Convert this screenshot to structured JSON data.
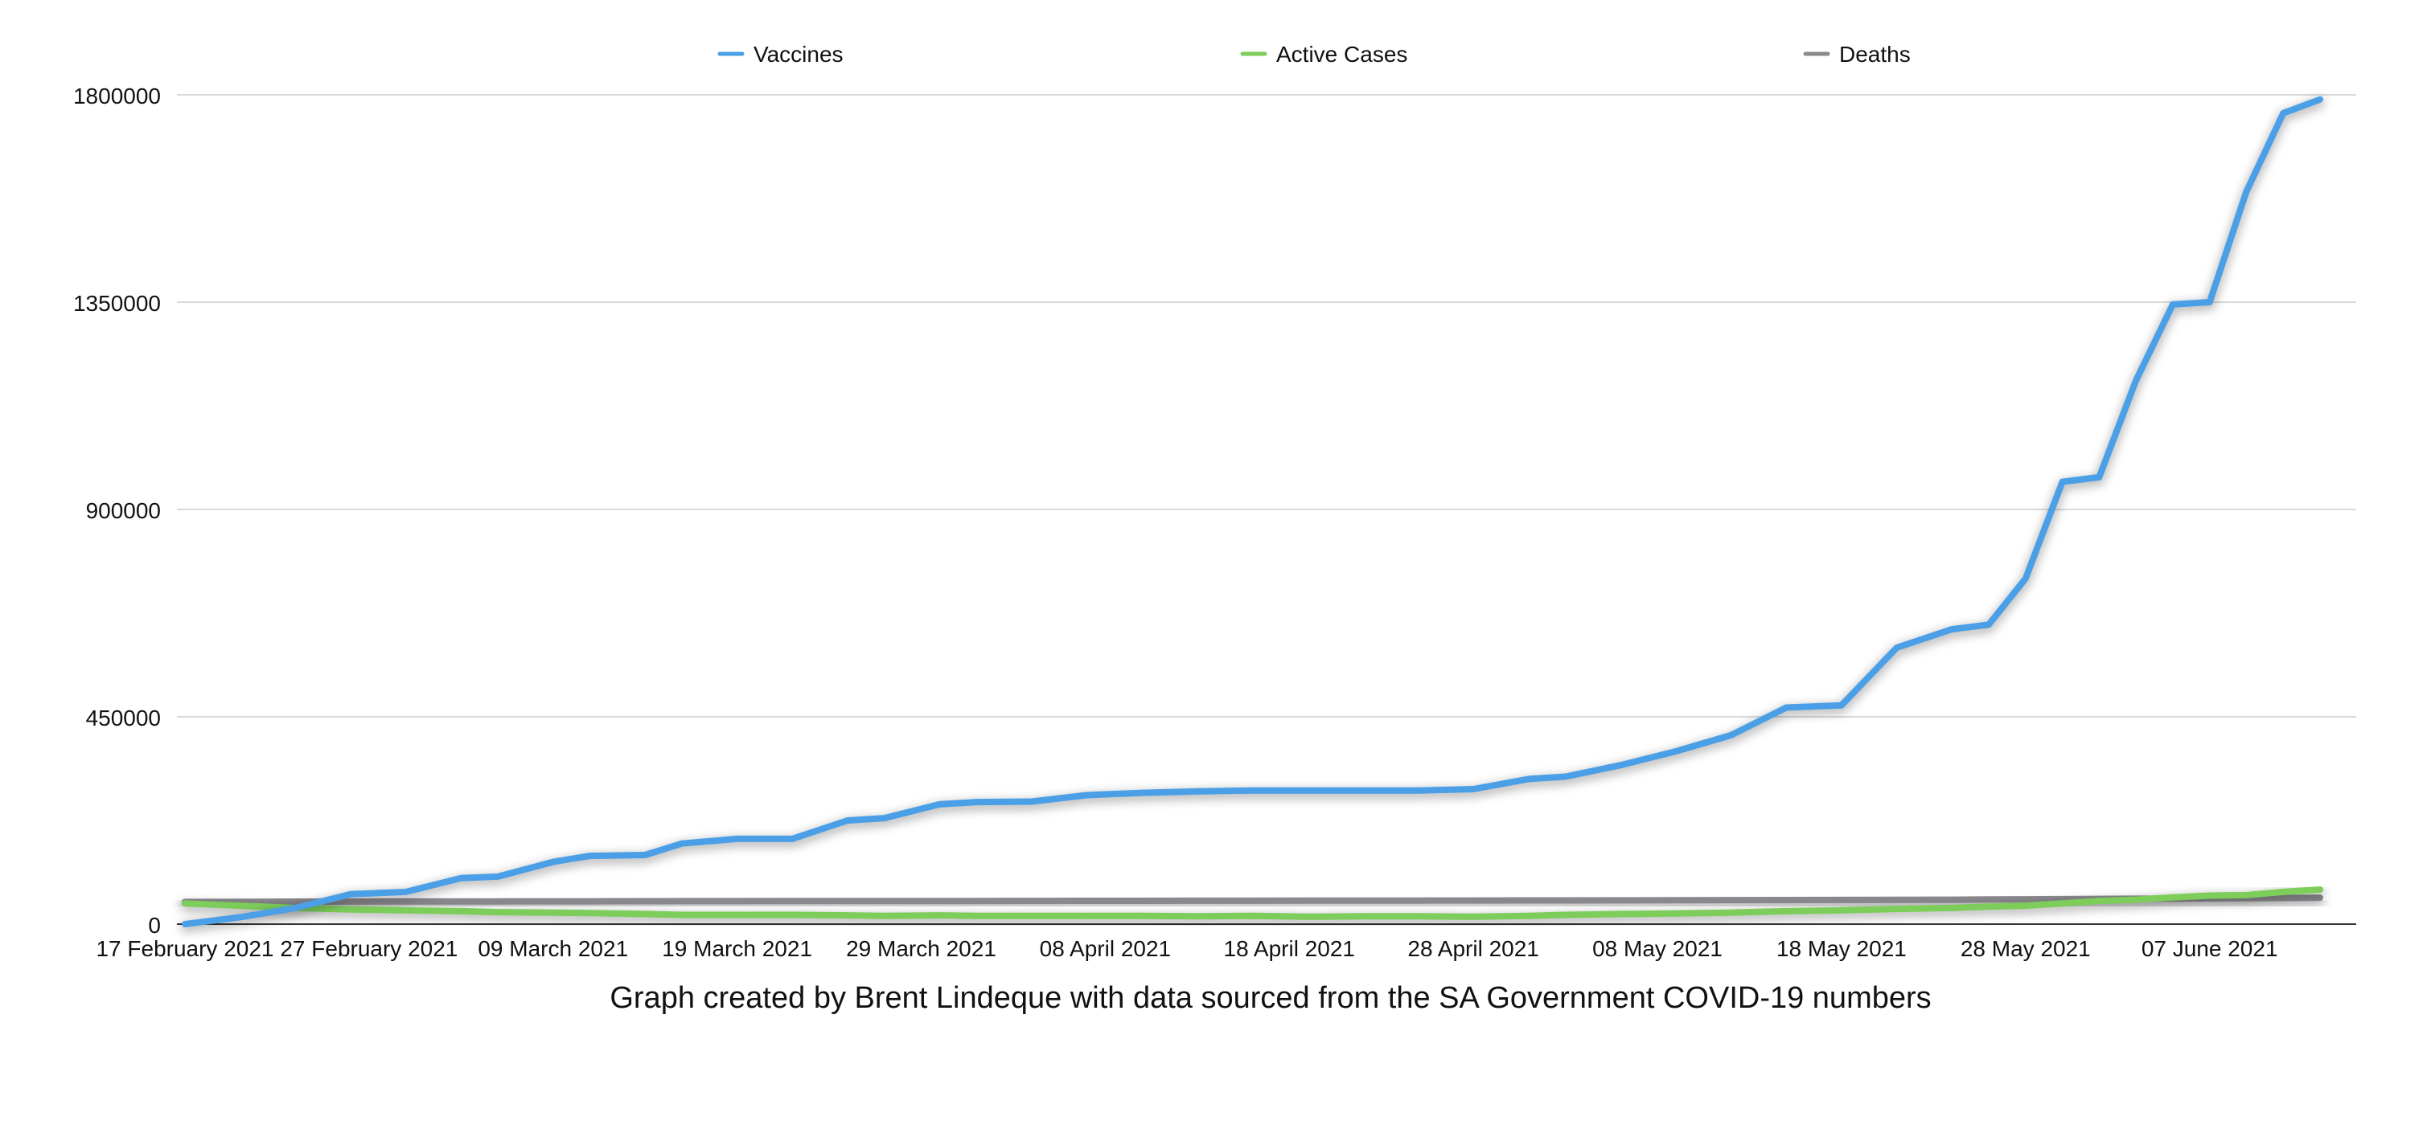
{
  "chart_data": {
    "type": "line",
    "title": "",
    "caption": "Graph created by Brent Lindeque with data sourced from the SA Government COVID-19 numbers",
    "xlabel": "",
    "ylabel": "",
    "ylim": [
      0,
      1800000
    ],
    "yticks": [
      "0",
      "450000",
      "900000",
      "1350000",
      "1800000"
    ],
    "x_tick_labels": [
      "17 February 2021",
      "27 February 2021",
      "09 March 2021",
      "19 March 2021",
      "29 March 2021",
      "08 April 2021",
      "18 April 2021",
      "28 April 2021",
      "08 May 2021",
      "18 May 2021",
      "28 May 2021",
      "07 June 2021"
    ],
    "grid": "horizontal",
    "legend_position": "top",
    "colors": {
      "Vaccines": "#4a9fe6",
      "Active Cases": "#7ccd5a",
      "Deaths": "#8a8a8e"
    },
    "x": [
      "2021-02-17",
      "2021-02-20",
      "2021-02-23",
      "2021-02-26",
      "2021-03-01",
      "2021-03-04",
      "2021-03-06",
      "2021-03-09",
      "2021-03-11",
      "2021-03-14",
      "2021-03-16",
      "2021-03-19",
      "2021-03-22",
      "2021-03-25",
      "2021-03-27",
      "2021-03-30",
      "2021-04-01",
      "2021-04-04",
      "2021-04-07",
      "2021-04-10",
      "2021-04-13",
      "2021-04-16",
      "2021-04-19",
      "2021-04-22",
      "2021-04-25",
      "2021-04-28",
      "2021-05-01",
      "2021-05-03",
      "2021-05-06",
      "2021-05-09",
      "2021-05-12",
      "2021-05-15",
      "2021-05-18",
      "2021-05-21",
      "2021-05-24",
      "2021-05-26",
      "2021-05-28",
      "2021-05-30",
      "2021-06-01",
      "2021-06-03",
      "2021-06-05",
      "2021-06-07",
      "2021-06-09",
      "2021-06-11",
      "2021-06-13"
    ],
    "series": [
      {
        "name": "Vaccines",
        "values": [
          0,
          15000,
          35000,
          65000,
          70000,
          100000,
          103000,
          135000,
          148000,
          150000,
          175000,
          185000,
          185000,
          225000,
          230000,
          260000,
          265000,
          266000,
          280000,
          285000,
          288000,
          290000,
          290000,
          290000,
          290000,
          293000,
          315000,
          320000,
          345000,
          375000,
          410000,
          470000,
          475000,
          600000,
          640000,
          650000,
          750000,
          960000,
          970000,
          1180000,
          1345000,
          1350000,
          1590000,
          1760000,
          1790000
        ]
      },
      {
        "name": "Active Cases",
        "values": [
          45000,
          40000,
          35000,
          32000,
          30000,
          28000,
          26000,
          25000,
          24000,
          22000,
          20000,
          20000,
          20000,
          19000,
          18000,
          19000,
          18000,
          18000,
          18000,
          18000,
          17000,
          18000,
          16000,
          17000,
          17000,
          16000,
          18000,
          20000,
          22000,
          23000,
          25000,
          28000,
          30000,
          33000,
          35000,
          38000,
          40000,
          45000,
          50000,
          53000,
          58000,
          62000,
          63000,
          70000,
          75000
        ]
      },
      {
        "name": "Deaths",
        "values": [
          48000,
          48500,
          48800,
          49000,
          49200,
          49300,
          49400,
          49500,
          49600,
          49700,
          49800,
          49900,
          50000,
          50000,
          50100,
          50200,
          50300,
          50400,
          50500,
          50600,
          50700,
          50800,
          50900,
          51000,
          51100,
          51200,
          51400,
          51500,
          51700,
          51900,
          52100,
          52300,
          52500,
          52800,
          53100,
          53500,
          53900,
          54300,
          54700,
          55100,
          55500,
          55900,
          56300,
          56800,
          57300
        ]
      }
    ]
  }
}
